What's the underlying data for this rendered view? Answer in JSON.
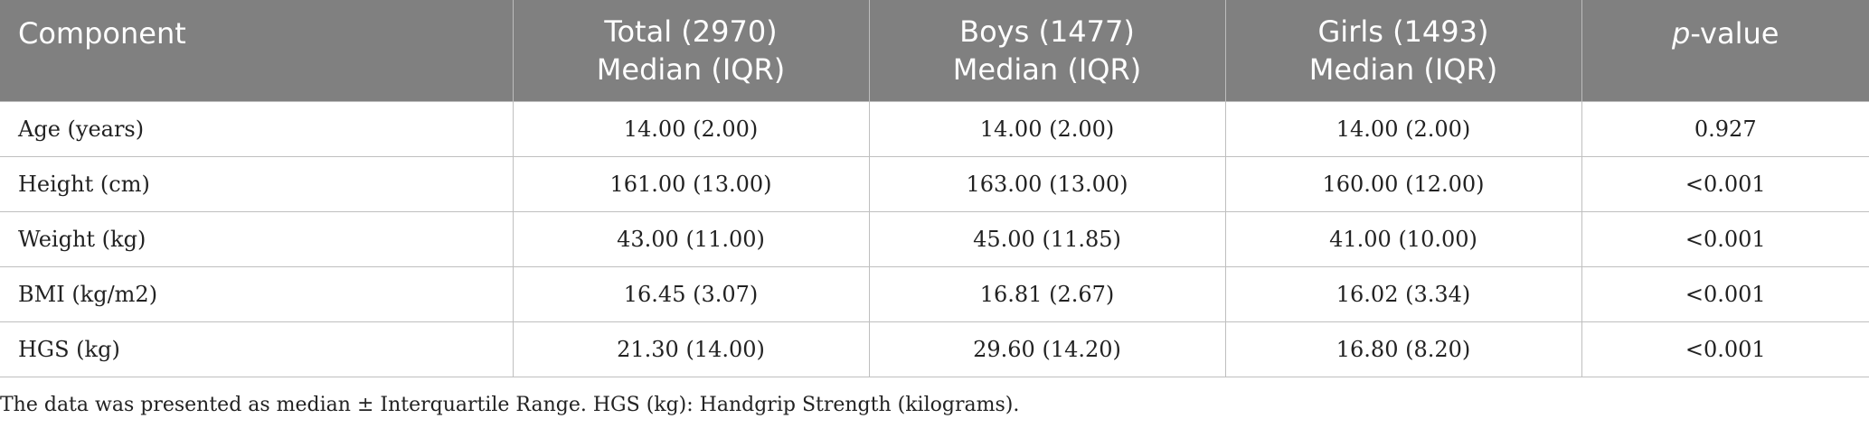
{
  "table": {
    "header": {
      "component": "Component",
      "total_line1": "Total (2970)",
      "total_line2": "Median (IQR)",
      "boys_line1": "Boys (1477)",
      "boys_line2": "Median (IQR)",
      "girls_line1": "Girls (1493)",
      "girls_line2": "Median (IQR)",
      "pvalue_italic": "p",
      "pvalue_rest": "-value"
    },
    "rows": [
      {
        "component": "Age (years)",
        "total": "14.00 (2.00)",
        "boys": "14.00 (2.00)",
        "girls": "14.00 (2.00)",
        "p": "0.927"
      },
      {
        "component": "Height (cm)",
        "total": "161.00 (13.00)",
        "boys": "163.00 (13.00)",
        "girls": "160.00 (12.00)",
        "p": "<0.001"
      },
      {
        "component": "Weight (kg)",
        "total": "43.00 (11.00)",
        "boys": "45.00 (11.85)",
        "girls": "41.00 (10.00)",
        "p": "<0.001"
      },
      {
        "component": "BMI (kg/m2)",
        "total": "16.45 (3.07)",
        "boys": "16.81 (2.67)",
        "girls": "16.02 (3.34)",
        "p": "<0.001"
      },
      {
        "component": "HGS (kg)",
        "total": "21.30 (14.00)",
        "boys": "29.60 (14.20)",
        "girls": "16.80 (8.20)",
        "p": "<0.001"
      }
    ]
  },
  "footnote": "The data was presented as median ± Interquartile Range. HGS (kg): Handgrip Strength (kilograms).",
  "colors": {
    "header_bg": "#808080",
    "header_text": "#ffffff",
    "grid": "#bfbfbf"
  }
}
